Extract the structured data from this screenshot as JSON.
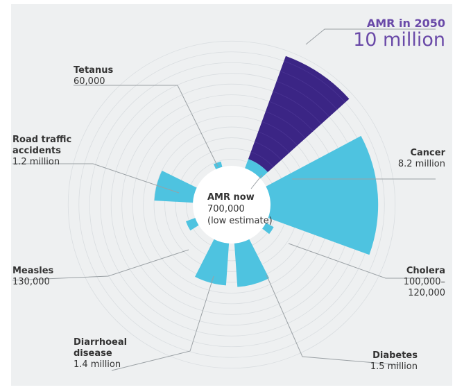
{
  "chart_data": {
    "type": "polar-bar",
    "title": "",
    "series": [
      {
        "label": "AMR in 2050",
        "value_text": "10 million",
        "value": 10000000,
        "color": "#3b2585"
      },
      {
        "label": "Cancer",
        "value_text": "8.2 million",
        "value": 8200000,
        "color": "#4ec3e0"
      },
      {
        "label": "Cholera",
        "value_text": "100,000–\n120,000",
        "value": 110000,
        "color": "#4ec3e0"
      },
      {
        "label": "Diabetes",
        "value_text": "1.5 million",
        "value": 1500000,
        "color": "#4ec3e0"
      },
      {
        "label": "Diarrhoeal disease",
        "value_text": "1.4 million",
        "value": 1400000,
        "color": "#4ec3e0"
      },
      {
        "label": "Measles",
        "value_text": "130,000",
        "value": 130000,
        "color": "#4ec3e0"
      },
      {
        "label": "Road traffic accidents",
        "value_text": "1.2 million",
        "value": 1200000,
        "color": "#4ec3e0"
      },
      {
        "label": "Tetanus",
        "value_text": "60,000",
        "value": 60000,
        "color": "#4ec3e0"
      },
      {
        "label": "AMR now",
        "value_text": "700,000\n(low estimate)",
        "value": 700000,
        "color": "#4ec3e0"
      }
    ],
    "grid": true
  },
  "labels": {
    "amr2050_name": "AMR in 2050",
    "amr2050_value": "10 million",
    "cancer_name": "Cancer",
    "cancer_value": "8.2 million",
    "cholera_name": "Cholera",
    "cholera_value1": "100,000–",
    "cholera_value2": "120,000",
    "diabetes_name": "Diabetes",
    "diabetes_value": "1.5 million",
    "diarrhoeal_name1": "Diarrhoeal",
    "diarrhoeal_name2": "disease",
    "diarrhoeal_value": "1.4 million",
    "measles_name": "Measles",
    "measles_value": "130,000",
    "road_name1": "Road traffic",
    "road_name2": "accidents",
    "road_value": "1.2 million",
    "tetanus_name": "Tetanus",
    "tetanus_value": "60,000",
    "amrnow_name": "AMR now",
    "amrnow_value1": "700,000",
    "amrnow_value2": "(low estimate)"
  }
}
